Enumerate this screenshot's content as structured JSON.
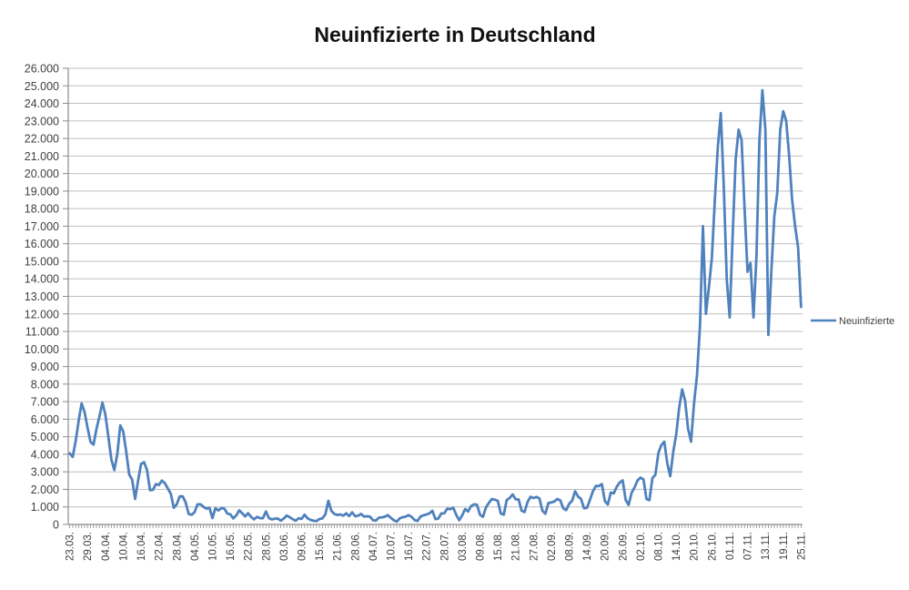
{
  "title": "Neuinfizierte in Deutschland",
  "legend": {
    "label": "Neuinfizierte"
  },
  "colors": {
    "line": "#4F81BD",
    "grid": "#BFBFBF",
    "axis": "#8C8C8C",
    "tick": "#8C8C8C",
    "text": "#3F3F3F",
    "title": "#111111",
    "background": "#FFFFFF"
  },
  "chart_data": {
    "type": "line",
    "title": "Neuinfizierte in Deutschland",
    "legend_position": "right",
    "grid": true,
    "y_axis": {
      "min": 0,
      "max": 26000,
      "step": 1000,
      "tick_labels": [
        "0",
        "1.000",
        "2.000",
        "3.000",
        "4.000",
        "5.000",
        "6.000",
        "7.000",
        "8.000",
        "9.000",
        "10.000",
        "11.000",
        "12.000",
        "13.000",
        "14.000",
        "15.000",
        "16.000",
        "17.000",
        "18.000",
        "19.000",
        "20.000",
        "21.000",
        "22.000",
        "23.000",
        "24.000",
        "25.000",
        "26.000"
      ]
    },
    "x_axis": {
      "tick_labels": [
        "23.03.",
        "29.03.",
        "04.04.",
        "10.04.",
        "16.04.",
        "22.04.",
        "28.04.",
        "04.05.",
        "10.05.",
        "16.05.",
        "22.05.",
        "28.05.",
        "03.06.",
        "09.06.",
        "15.06.",
        "21.06.",
        "28.06.",
        "04.07.",
        "10.07.",
        "16.07.",
        "22.07.",
        "28.07.",
        "03.08.",
        "09.08.",
        "15.08.",
        "21.08.",
        "27.08.",
        "02.09.",
        "08.09.",
        "14.09.",
        "20.09.",
        "26.09.",
        "02.10.",
        "08.10.",
        "14.10.",
        "20.10.",
        "26.10.",
        "01.11.",
        "07.11.",
        "13.11.",
        "19.11.",
        "25.11."
      ],
      "label_every_n_points": 6,
      "sampling": "daily"
    },
    "series": [
      {
        "name": "Neuinfizierte",
        "color": "#4F81BD",
        "values": [
          4050,
          3850,
          4750,
          5900,
          6900,
          6400,
          5500,
          4700,
          4550,
          5450,
          6150,
          6950,
          6250,
          5000,
          3700,
          3100,
          4000,
          5650,
          5300,
          4150,
          2850,
          2550,
          1450,
          2500,
          3450,
          3550,
          3100,
          1950,
          1975,
          2300,
          2250,
          2500,
          2350,
          2050,
          1750,
          950,
          1150,
          1600,
          1600,
          1250,
          600,
          550,
          700,
          1150,
          1150,
          1000,
          900,
          950,
          360,
          930,
          800,
          930,
          910,
          620,
          580,
          345,
          510,
          800,
          640,
          460,
          640,
          430,
          290,
          430,
          360,
          355,
          740,
          360,
          285,
          330,
          333,
          215,
          340,
          510,
          410,
          300,
          215,
          350,
          320,
          555,
          350,
          260,
          215,
          190,
          310,
          345,
          580,
          1350,
          770,
          600,
          540,
          570,
          500,
          630,
          480,
          690,
          470,
          500,
          600,
          450,
          465,
          445,
          240,
          220,
          390,
          400,
          440,
          530,
          380,
          240,
          160,
          350,
          410,
          450,
          530,
          430,
          250,
          200,
          450,
          520,
          570,
          630,
          780,
          305,
          340,
          630,
          635,
          900,
          870,
          955,
          555,
          240,
          510,
          880,
          740,
          1045,
          1145,
          1120,
          555,
          435,
          965,
          1230,
          1445,
          1415,
          1340,
          625,
          560,
          1390,
          1510,
          1710,
          1430,
          1425,
          780,
          710,
          1280,
          1575,
          1505,
          1570,
          1480,
          785,
          610,
          1220,
          1255,
          1310,
          1450,
          1375,
          925,
          815,
          1175,
          1350,
          1890,
          1590,
          1450,
          920,
          950,
          1410,
          1900,
          2195,
          2190,
          2300,
          1340,
          1135,
          1820,
          1770,
          2145,
          2395,
          2510,
          1400,
          1115,
          1800,
          2115,
          2505,
          2670,
          2565,
          1450,
          1385,
          2640,
          2830,
          4060,
          4520,
          4720,
          3485,
          2750,
          4125,
          5130,
          6640,
          7700,
          7050,
          5450,
          4720,
          6900,
          8500,
          11300,
          17000,
          12000,
          13500,
          15200,
          18500,
          21500,
          23450,
          19300,
          14000,
          11800,
          16500,
          20800,
          22500,
          21900,
          18000,
          14400,
          14900,
          11800,
          15300,
          21900,
          24750,
          22500,
          10800,
          14400,
          17550,
          18900,
          22500,
          23550,
          23000,
          21000,
          18500,
          17000,
          15800,
          12400
        ]
      }
    ]
  }
}
